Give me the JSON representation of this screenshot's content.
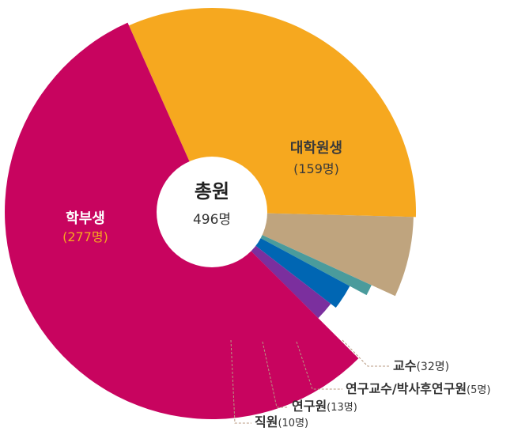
{
  "chart_data": {
    "type": "pie",
    "variant": "exploded-radius-donut",
    "center_label": {
      "title": "총원",
      "total": "496명"
    },
    "slices": [
      {
        "name": "대학원생",
        "value": 159,
        "value_label": "(159명)",
        "color": "#F6A81F",
        "label_color": "#3a3a3a",
        "value_color": "#3a3a3a"
      },
      {
        "name": "교수",
        "value": 32,
        "value_label": "(32명)",
        "color": "#BFA47E",
        "label_color": "#333333",
        "value_color": "#333333"
      },
      {
        "name": "연구교수/박사후연구원",
        "value": 5,
        "value_label": "(5명)",
        "color": "#4A9B9C",
        "label_color": "#333333",
        "value_color": "#333333"
      },
      {
        "name": "연구원",
        "value": 13,
        "value_label": "(13명)",
        "color": "#0066B3",
        "label_color": "#333333",
        "value_color": "#333333"
      },
      {
        "name": "직원",
        "value": 10,
        "value_label": "(10명)",
        "color": "#7B2F9E",
        "label_color": "#333333",
        "value_color": "#333333"
      },
      {
        "name": "학부생",
        "value": 277,
        "value_label": "(277명)",
        "color": "#C8045F",
        "label_color": "#ffffff",
        "value_color": "#F6A81F"
      }
    ],
    "leader_line_color": "#b89a82"
  }
}
